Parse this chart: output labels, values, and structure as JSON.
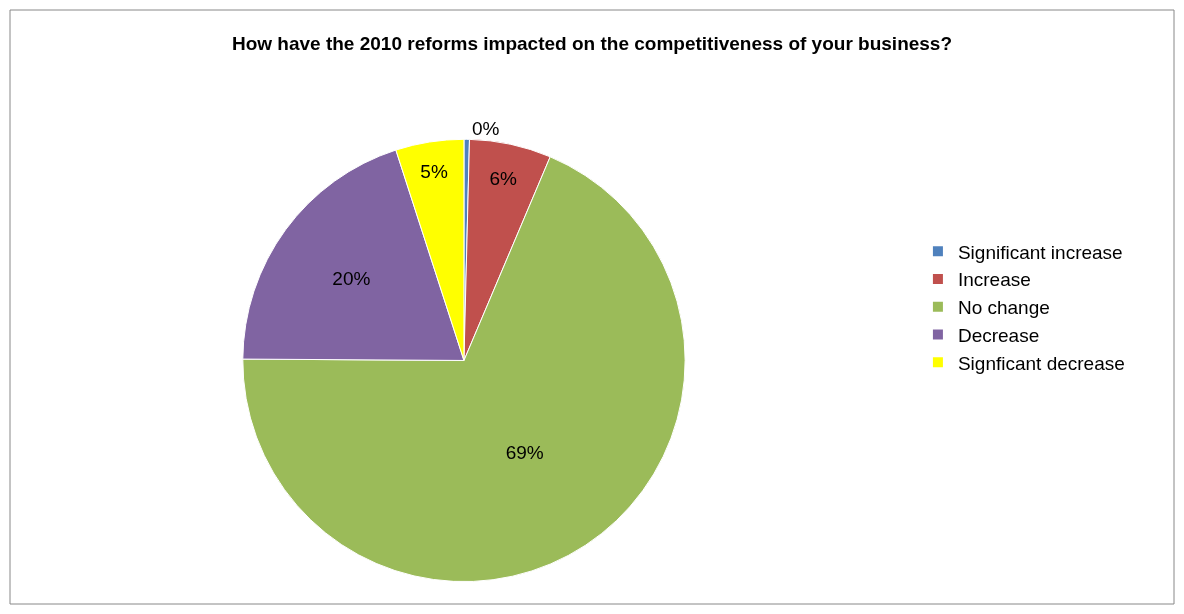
{
  "chart_data": {
    "type": "pie",
    "title": "How have the 2010 reforms impacted on the competitiveness of your business?",
    "categories": [
      "Significant increase",
      "Increase",
      "No change",
      "Decrease",
      "Signficant decrease"
    ],
    "values": [
      0.4,
      6,
      69,
      20,
      5
    ],
    "value_labels": [
      "0%",
      "6%",
      "69%",
      "20%",
      "5%"
    ],
    "colors": [
      "#4f81bd",
      "#c0504d",
      "#9bbb59",
      "#8064a2",
      "#ffff00"
    ],
    "legend": "right"
  }
}
